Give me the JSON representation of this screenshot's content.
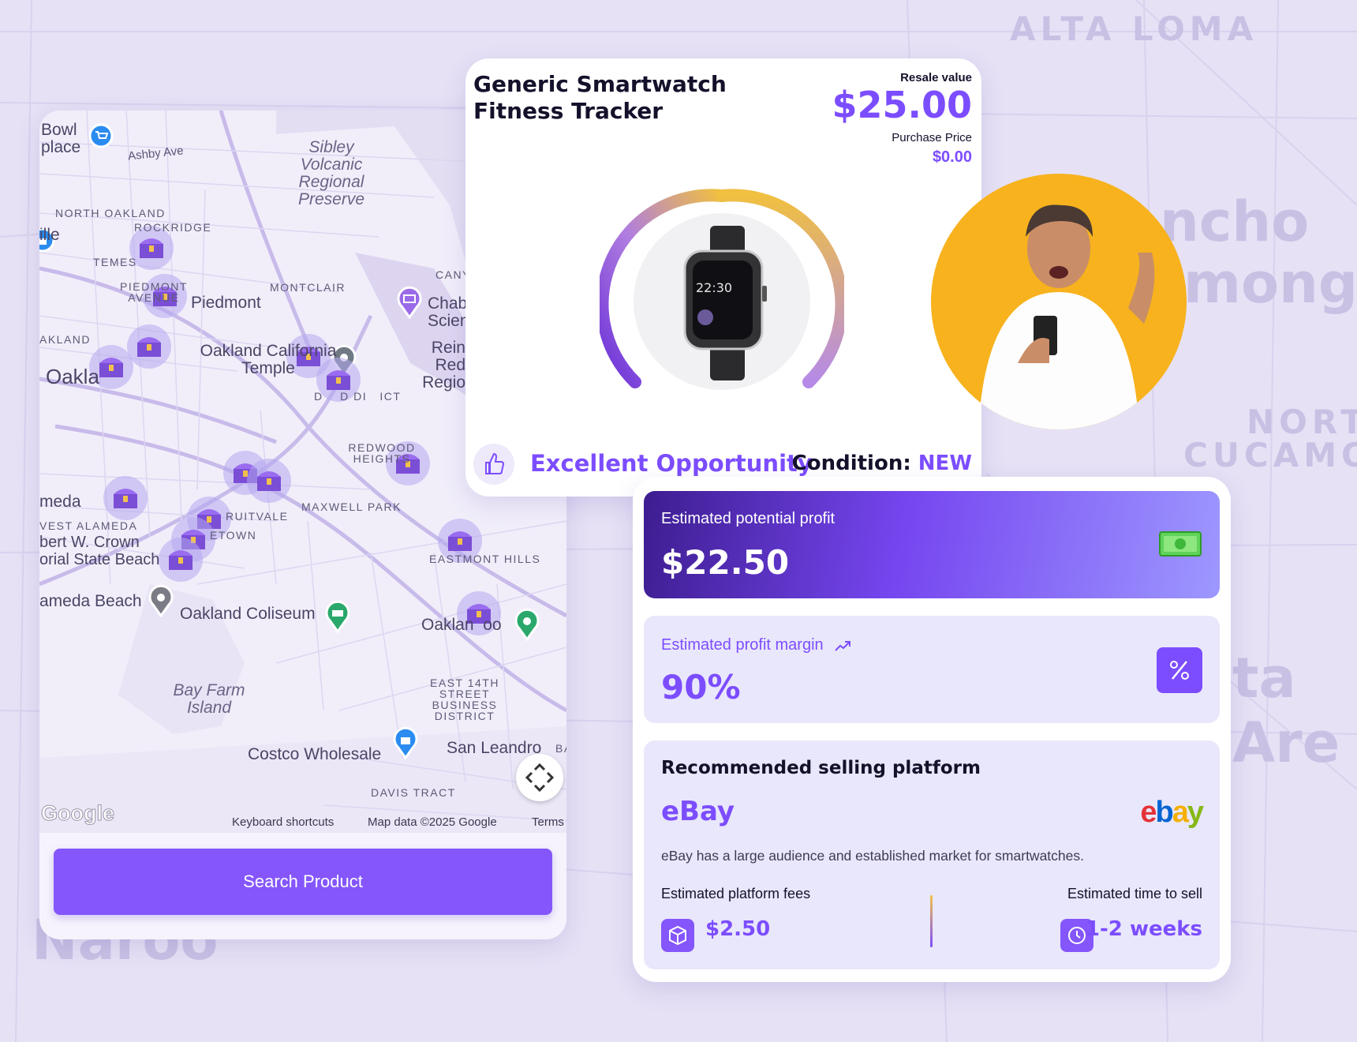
{
  "background": {
    "labels": [
      "ALTA LOMA",
      "ncho",
      "monga",
      "NORT",
      "CUCAMO",
      "ta Are",
      "Naroo"
    ]
  },
  "map": {
    "labels": {
      "bowl_place": "Bowl place",
      "ashby_ave": "Ashby Ave",
      "sibley": "Sibley Volcanic Regional Preserve",
      "north_oakland": "NORTH OAKLAND",
      "rockridge": "ROCKRIDGE",
      "ille": "ille",
      "temescal": "TEMES",
      "piedmont_avenue": "PIEDMONT AVENUE",
      "piedmont": "Piedmont",
      "montclair": "MONTCLAIR",
      "canyon": "CANY",
      "chabot": "Chab Scien",
      "akland": "AKLAND",
      "oakland_temple": "Oakland California Temple",
      "reinhardt": "Rein Red Regio",
      "oakland": "Oakla",
      "district": "D    D DI   ICT",
      "redwood_heights": "REDWOOD HEIGHTS",
      "meda": "meda",
      "west_alameda": "VEST ALAMEDA",
      "crown": "bert W. Crown orial State Beach",
      "fruitvale": "RUITVALE",
      "etown": "ETOWN",
      "maxwell_park": "MAXWELL PARK",
      "eastmont_hills": "EASTMONT HILLS",
      "alameda_beach": "ameda Beach",
      "oakland_coliseum": "Oakland Coliseum",
      "oakland_zoo": "Oaklan  oo",
      "bay_farm": "Bay Farm Island",
      "east_14th": "EAST 14TH STREET BUSINESS DISTRICT",
      "costco": "Costco Wholesale",
      "san_leandro": "San Leandro",
      "ba": "BA",
      "davis_tract": "DAVIS TRACT"
    },
    "google_logo": "Google",
    "footer": {
      "shortcuts": "Keyboard shortcuts",
      "map_data": "Map data ©2025 Google",
      "terms": "Terms"
    },
    "search_button": "Search Product"
  },
  "product": {
    "title": "Generic Smartwatch Fitness Tracker",
    "resale_label": "Resale value",
    "resale_value": "$25.00",
    "purchase_label": "Purchase Price",
    "purchase_value": "$0.00",
    "watch_time": "22:30",
    "opportunity": "Excellent Opportunity",
    "condition_label": "Condition:",
    "condition_value": "NEW"
  },
  "stats": {
    "profit_label": "Estimated potential profit",
    "profit_value": "$22.50",
    "margin_label": "Estimated profit margin",
    "margin_value": "90%",
    "rec_title": "Recommended selling platform",
    "platform": "eBay",
    "ebay_logo": [
      "e",
      "b",
      "a",
      "y"
    ],
    "description": "eBay has a large audience and established market for smartwatches.",
    "fees_label": "Estimated platform fees",
    "fees_value": "$2.50",
    "time_label": "Estimated time to sell",
    "time_value": "1-2 weeks"
  },
  "colors": {
    "accent": "#7c4dff",
    "button": "#8456fb",
    "avatar_bg": "#f7b21e",
    "ebay_e": "#e53238",
    "ebay_b": "#0064d2",
    "ebay_a": "#f5af02",
    "ebay_y": "#86b817"
  }
}
